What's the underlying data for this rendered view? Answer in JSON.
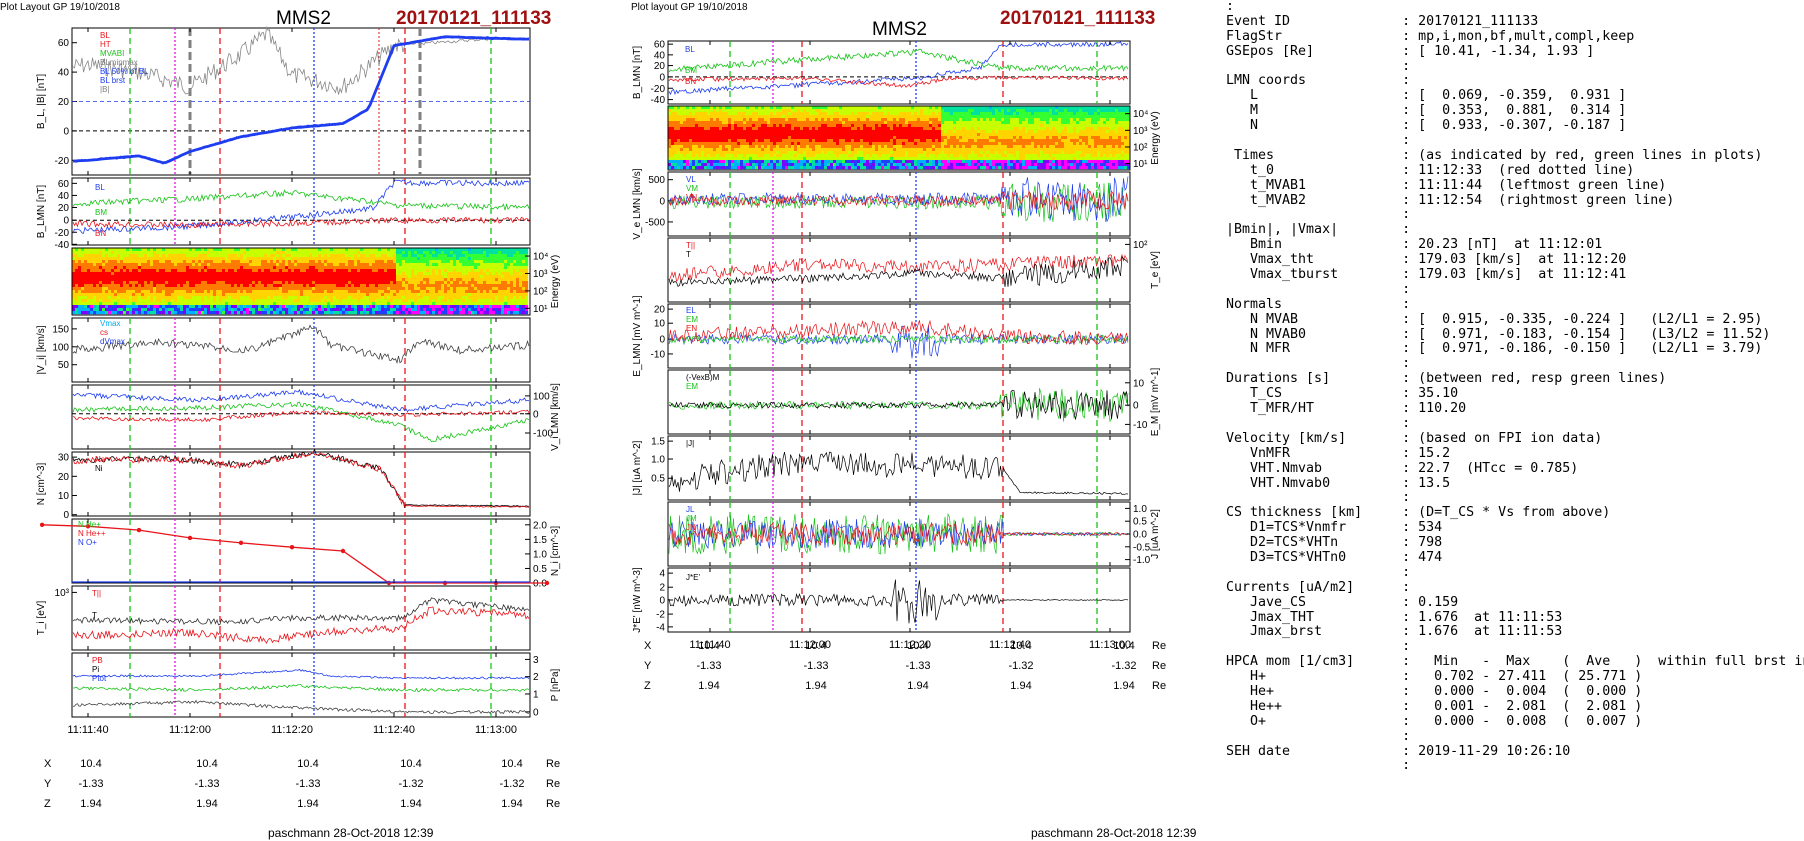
{
  "header_left": {
    "label": "Plot Layout GP 19/10/2018",
    "title": "MMS2",
    "event": "20170121_111133"
  },
  "header_mid": {
    "label": "Plot layout GP 19/10/2018",
    "title": "MMS2",
    "event": "20170121_111133"
  },
  "footer_left": "paschmann 28-Oct-2018 12:39",
  "footer_mid": "paschmann 28-Oct-2018 12:39",
  "time_ticks": [
    "11:11:40",
    "11:12:00",
    "11:12:20",
    "11:12:40",
    "11:13:00"
  ],
  "position_table": {
    "rows": [
      {
        "label": "X",
        "values": [
          "10.4",
          "10.4",
          "10.4",
          "10.4",
          "10.4"
        ],
        "unit": "Re"
      },
      {
        "label": "Y",
        "values": [
          "-1.33",
          "-1.33",
          "-1.33",
          "-1.32",
          "-1.32"
        ],
        "unit": "Re"
      },
      {
        "label": "Z",
        "values": [
          "1.94",
          "1.94",
          "1.94",
          "1.94",
          "1.94"
        ],
        "unit": "Re"
      }
    ]
  },
  "colors": {
    "red": "#e8141a",
    "green": "#19c319",
    "blue": "#1e3cf0",
    "magenta": "#e010e0",
    "dark_red": "#a01010",
    "grey": "#808080"
  },
  "chart_data": [
    {
      "type": "line",
      "panel": "left-1",
      "ylabel": "B_L, |B| [nT]",
      "ylim": [
        -30,
        70
      ],
      "yticks": [
        "60",
        "40",
        "20",
        "0",
        "-20"
      ],
      "legend": [
        "BL",
        "HT",
        "MVABI",
        "BLminmax",
        "BL 50% of BL",
        "BL brst",
        "|B|"
      ],
      "series": [
        {
          "name": "BL",
          "x": [
            "11:11:30",
            "11:11:40",
            "11:11:50",
            "11:11:55",
            "11:12:00",
            "11:12:10",
            "11:12:20",
            "11:12:30",
            "11:12:35",
            "11:12:40",
            "11:12:50",
            "11:13:00",
            "11:13:10"
          ],
          "values": [
            -22,
            -20,
            -17,
            -22,
            -14,
            -4,
            2,
            5,
            15,
            58,
            64,
            63,
            62
          ]
        },
        {
          "name": "|B|",
          "x": [
            "11:11:30",
            "11:11:40",
            "11:11:50",
            "11:12:00",
            "11:12:10",
            "11:12:15",
            "11:12:20",
            "11:12:30",
            "11:12:40",
            "11:13:00",
            "11:13:10"
          ],
          "values": [
            40,
            45,
            40,
            30,
            52,
            66,
            38,
            30,
            58,
            63,
            62
          ]
        }
      ]
    },
    {
      "type": "line",
      "panel": "left-2",
      "ylabel": "B_LMN [nT]",
      "ylim": [
        -40,
        70
      ],
      "yticks": [
        "60",
        "40",
        "20",
        "0",
        "-20",
        "-40"
      ],
      "legend": [
        "BL",
        "BM",
        "BN"
      ],
      "series": [
        {
          "name": "BL",
          "x": [
            "11:11:30",
            "11:12:00",
            "11:12:20",
            "11:12:36",
            "11:12:40",
            "11:13:10"
          ],
          "values": [
            -20,
            -10,
            5,
            20,
            62,
            60
          ]
        },
        {
          "name": "BM",
          "x": [
            "11:11:30",
            "11:12:00",
            "11:12:20",
            "11:12:36",
            "11:12:40",
            "11:13:10"
          ],
          "values": [
            25,
            35,
            45,
            30,
            25,
            20
          ]
        },
        {
          "name": "BN",
          "x": [
            "11:11:30",
            "11:12:00",
            "11:12:20",
            "11:12:40",
            "11:13:10"
          ],
          "values": [
            -5,
            -8,
            -5,
            0,
            0
          ]
        }
      ]
    },
    {
      "type": "heatmap",
      "panel": "left-3",
      "ylabel": "Energy (eV)",
      "yticks": [
        "10^4",
        "10^3",
        "10^2",
        "10^1"
      ]
    },
    {
      "type": "line",
      "panel": "left-4",
      "ylabel": "|V_i| [km/s]",
      "ylim": [
        0,
        180
      ],
      "yticks": [
        "150",
        "100",
        "50"
      ],
      "legend": [
        "Vmax",
        "cs",
        "dVmax"
      ]
    },
    {
      "type": "line",
      "panel": "left-5",
      "ylabel": "V_i LMN [km/s]",
      "ylim": [
        -150,
        150
      ],
      "yticks": [
        "100",
        "0",
        "-100"
      ],
      "legend": [
        "VL",
        "VM",
        "VN"
      ]
    },
    {
      "type": "line",
      "panel": "left-6",
      "ylabel": "N [cm^-3]",
      "ylim": [
        0,
        32
      ],
      "yticks": [
        "30",
        "20",
        "10",
        "0"
      ],
      "legend": [
        "Ne",
        "Ni"
      ]
    },
    {
      "type": "line",
      "panel": "left-7",
      "ylabel": "N_i [cm^-3]",
      "ylim": [
        0,
        2.2
      ],
      "yticks": [
        "2.0",
        "1.5",
        "1.0",
        "0.5",
        "0.0"
      ],
      "legend": [
        "N He+",
        "N He++",
        "N O+"
      ],
      "series": [
        {
          "name": "N He++",
          "x": [
            "11:11:31",
            "11:11:40",
            "11:11:50",
            "11:12:00",
            "11:12:10",
            "11:12:20",
            "11:12:30",
            "11:12:39",
            "11:12:50",
            "11:13:00",
            "11:13:10"
          ],
          "values": [
            2.0,
            1.95,
            1.82,
            1.55,
            1.38,
            1.23,
            1.1,
            0.0,
            0.0,
            0.0,
            0.0
          ]
        }
      ]
    },
    {
      "type": "line",
      "panel": "left-8",
      "ylabel": "T_i [eV]",
      "yticks": [
        "10^3"
      ],
      "legend": [
        "T_||",
        "T_perp"
      ]
    },
    {
      "type": "line",
      "panel": "left-9",
      "ylabel": "P [nPa]",
      "ylim": [
        0,
        3
      ],
      "yticks": [
        "3",
        "2",
        "1",
        "0"
      ],
      "legend": [
        "P_B",
        "P_i",
        "P_tot"
      ]
    },
    {
      "type": "line",
      "panel": "mid-1",
      "ylabel": "B_LMN [nT]",
      "yticks": [
        "60",
        "40",
        "20",
        "0",
        "-20",
        "-40"
      ],
      "legend": [
        "BL",
        "BM",
        "BN"
      ]
    },
    {
      "type": "heatmap",
      "panel": "mid-2",
      "ylabel": "Energy (eV)",
      "yticks": [
        "10^4",
        "10^3",
        "10^2",
        "10^1"
      ]
    },
    {
      "type": "line",
      "panel": "mid-3",
      "ylabel": "V_e LMN [km/s]",
      "yticks": [
        "500",
        "0",
        "-500"
      ],
      "legend": [
        "VL",
        "VM",
        "VN"
      ]
    },
    {
      "type": "line",
      "panel": "mid-4",
      "ylabel": "T_e [eV]",
      "yticks": [
        "10^2"
      ],
      "legend": [
        "T_||",
        "T_perp"
      ]
    },
    {
      "type": "line",
      "panel": "mid-5",
      "ylabel": "E_LMN [mV m^-1]",
      "yticks": [
        "20",
        "10",
        "0",
        "-10"
      ],
      "legend": [
        "EL",
        "EM",
        "EN"
      ]
    },
    {
      "type": "line",
      "panel": "mid-6",
      "ylabel": "E_M [mV m^-1]",
      "yticks": [
        "10",
        "0",
        "-10"
      ],
      "legend": [
        "(-VexB)M",
        "EM"
      ]
    },
    {
      "type": "line",
      "panel": "mid-7",
      "ylabel": "|J| [uA m^-2]",
      "yticks": [
        "1.5",
        "1.0",
        "0.5"
      ],
      "legend": [
        "|J|"
      ]
    },
    {
      "type": "line",
      "panel": "mid-8",
      "ylabel": "J [uA m^-2]",
      "yticks": [
        "1.0",
        "0.5",
        "0.0",
        "-0.5",
        "-1.0"
      ],
      "legend": [
        "JL",
        "JM",
        "JN"
      ]
    },
    {
      "type": "line",
      "panel": "mid-9",
      "ylabel": "J*E' [nW m^-3]",
      "yticks": [
        "4",
        "2",
        "0",
        "-2",
        "-4"
      ],
      "legend": [
        "J*E'"
      ]
    }
  ],
  "summary": {
    "lines": [
      ":",
      "Event ID              : 20170121_111133",
      "FlagStr               : mp,i,mon,bf,mult,compl,keep",
      "GSEpos [Re]           : [ 10.41, -1.34, 1.93 ]",
      "                      :",
      "LMN coords            :",
      "   L                  : [  0.069, -0.359,  0.931 ]",
      "   M                  : [  0.353,  0.881,  0.314 ]",
      "   N                  : [  0.933, -0.307, -0.187 ]",
      "                      :",
      " Times                : (as indicated by red, green lines in plots)",
      "   t_0                : 11:12:33  (red dotted line)",
      "   t_MVAB1            : 11:11:44  (leftmost green line)",
      "   t_MVAB2            : 11:12:54  (rightmost green line)",
      "                      :",
      "|Bmin|, |Vmax|        :",
      "   Bmin               : 20.23 [nT]  at 11:12:01",
      "   Vmax_tht           : 179.03 [km/s]  at 11:12:20",
      "   Vmax_tburst        : 179.03 [km/s]  at 11:12:41",
      "                      :",
      "Normals               :",
      "   N MVAB             : [  0.915, -0.335, -0.224 ]   (L2/L1 = 2.95)",
      "   N MVAB0            : [  0.971, -0.183, -0.154 ]   (L3/L2 = 11.52)",
      "   N MFR              : [  0.971, -0.186, -0.150 ]   (L2/L1 = 3.79)",
      "                      :",
      "Durations [s]         : (between red, resp green lines)",
      "   T_CS               : 35.10",
      "   T_MFR/HT           : 110.20",
      "                      :",
      "Velocity [km/s]       : (based on FPI ion data)",
      "   VnMFR              : 15.2",
      "   VHT.Nmvab          : 22.7  (HTcc = 0.785)",
      "   VHT.Nmvab0         : 13.5",
      "                      :",
      "CS thickness [km]     : (D=T_CS * Vs from above)",
      "   D1=TCS*Vnmfr       : 534",
      "   D2=TCS*VHTn        : 798",
      "   D3=TCS*VHTn0       : 474",
      "                      :",
      "Currents [uA/m2]      :",
      "   Jave_CS            : 0.159",
      "   Jmax_THT           : 1.676  at 11:11:53",
      "   Jmax_brst          : 1.676  at 11:11:53",
      "                      :",
      "HPCA mom [1/cm3]      :   Min   -  Max    (  Ave   )  within full brst int",
      "   H+                 :   0.702 - 27.411  ( 25.771 )",
      "   He+                :   0.000 -  0.004  (  0.000 )",
      "   He++               :   0.001 -  2.081  (  2.081 )",
      "   O+                 :   0.000 -  0.008  (  0.007 )",
      "                      :",
      "SEH date              : 2019-11-29 10:26:10",
      "                      :"
    ]
  }
}
